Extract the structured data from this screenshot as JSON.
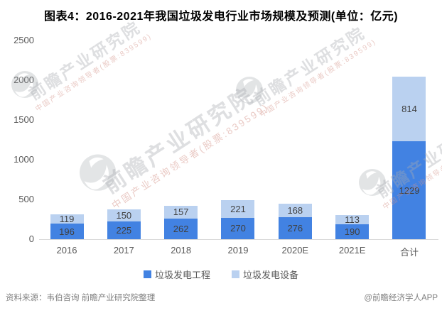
{
  "title": "图表4：2016-2021年我国垃圾发电行业市场规模及预测(单位：亿元)",
  "chart_data": {
    "type": "bar",
    "stacked": true,
    "unit": "亿元",
    "categories": [
      "2016",
      "2017",
      "2018",
      "2019",
      "2020E",
      "2021E",
      "合计"
    ],
    "series": [
      {
        "name": "垃圾发电工程",
        "color": "#4282E2",
        "values": [
          196,
          225,
          262,
          270,
          276,
          190,
          1229
        ]
      },
      {
        "name": "垃圾发电设备",
        "color": "#BAD1F0",
        "values": [
          119,
          150,
          157,
          221,
          168,
          113,
          814
        ]
      }
    ],
    "ylim": [
      0,
      2500
    ],
    "yticks": [
      0,
      500,
      1000,
      1500,
      2000,
      2500
    ],
    "grid": false,
    "legend_position": "bottom",
    "value_labels": true
  },
  "footer": {
    "source": "资料来源：韦伯咨询 前瞻产业研究院整理",
    "credit": "@前瞻经济学人APP"
  },
  "watermark": {
    "text": "前瞻产业研究院",
    "subtext": "中国产业咨询领导者(股票:839599)"
  },
  "colors": {
    "axis_line": "#D9D9D9",
    "axis_text": "#595959",
    "value_text": "#404040",
    "title_text": "#000000",
    "footer_text": "#7F7F7F"
  }
}
